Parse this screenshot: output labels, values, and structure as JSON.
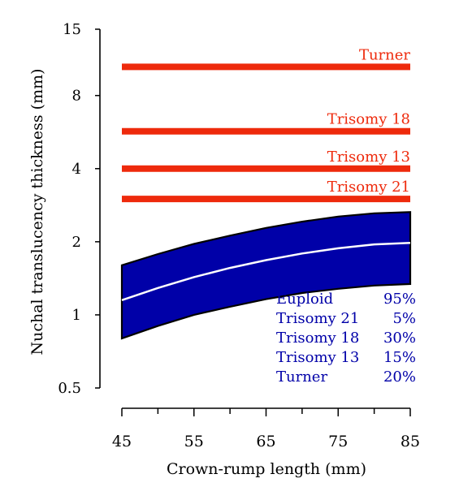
{
  "chart_data": {
    "type": "area",
    "xlabel": "Crown-rump length (mm)",
    "ylabel": "Nuchal translucency thickness (mm)",
    "xlim": [
      45,
      85
    ],
    "ylim": [
      0.5,
      15
    ],
    "yscale": "log",
    "x_ticks": [
      45,
      55,
      65,
      75,
      85
    ],
    "x_tick_labels": [
      "45",
      "55",
      "65",
      "75",
      "85"
    ],
    "y_ticks": [
      0.5,
      1,
      2,
      4,
      8,
      15
    ],
    "y_tick_labels": [
      "0.5",
      "1",
      "2",
      "4",
      "8",
      "15"
    ],
    "grid": false,
    "band": {
      "name": "",
      "color": "#0000a8",
      "x": [
        45,
        50,
        55,
        60,
        65,
        70,
        75,
        80,
        85
      ],
      "upper": [
        1.6,
        1.78,
        1.96,
        2.12,
        2.28,
        2.42,
        2.54,
        2.62,
        2.65
      ],
      "median": [
        1.15,
        1.29,
        1.43,
        1.56,
        1.68,
        1.79,
        1.88,
        1.95,
        1.98
      ],
      "lower": [
        0.8,
        0.9,
        1.0,
        1.08,
        1.16,
        1.23,
        1.28,
        1.32,
        1.34
      ]
    },
    "series": [
      {
        "name": "Turner",
        "x": [
          45,
          85
        ],
        "values": [
          10.5,
          10.5
        ],
        "color": "#ee2a0c"
      },
      {
        "name": "Trisomy 18",
        "x": [
          45,
          85
        ],
        "values": [
          5.7,
          5.7
        ],
        "color": "#ee2a0c"
      },
      {
        "name": "Trisomy 13",
        "x": [
          45,
          85
        ],
        "values": [
          4.0,
          4.0
        ],
        "color": "#ee2a0c"
      },
      {
        "name": "Trisomy 21",
        "x": [
          45,
          85
        ],
        "values": [
          3.0,
          3.0
        ],
        "color": "#ee2a0c"
      }
    ],
    "table": {
      "color": "#0000a8",
      "rows": [
        {
          "label": "Euploid",
          "value": "95%"
        },
        {
          "label": "Trisomy 21",
          "value": "5%"
        },
        {
          "label": "Trisomy 18",
          "value": "30%"
        },
        {
          "label": "Trisomy 13",
          "value": "15%"
        },
        {
          "label": "Turner",
          "value": "20%"
        }
      ]
    }
  }
}
